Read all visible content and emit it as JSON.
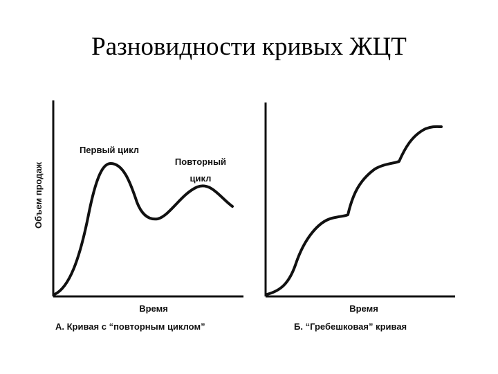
{
  "slide": {
    "title": "Разновидности кривых ЖЦТ"
  },
  "panel_a": {
    "ylabel": "Объем продаж",
    "xlabel": "Время",
    "caption": "А. Кривая с “повторным циклом”",
    "annotation_first": "Первый цикл",
    "annotation_repeat_line1": "Повторный",
    "annotation_repeat_line2": "цикл"
  },
  "panel_b": {
    "xlabel": "Время",
    "caption": "Б. “Гребешковая” кривая"
  }
}
